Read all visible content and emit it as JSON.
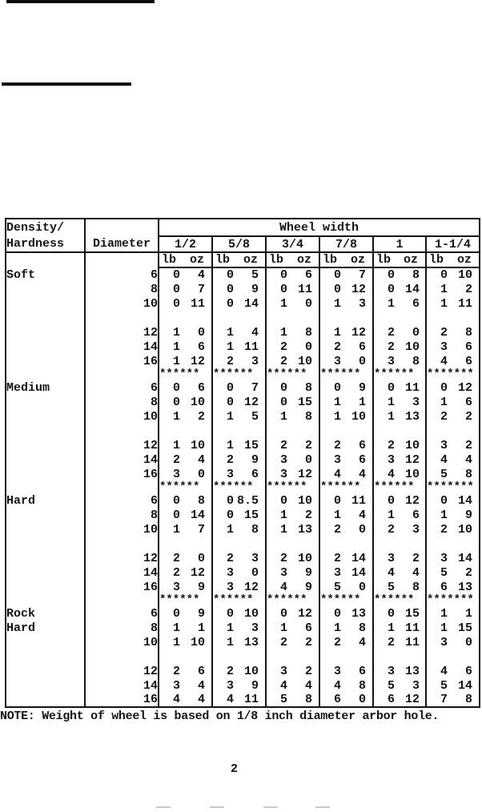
{
  "decor": {
    "top_rule_1": "redacted-rule",
    "top_rule_2": "redacted-rule"
  },
  "table": {
    "header": {
      "density_line1": "Density/",
      "density_line2": "Hardness",
      "diameter": "Diameter",
      "wheel_width": "Wheel width",
      "width_cols": [
        "1/2",
        "5/8",
        "3/4",
        "7/8",
        "1",
        "1-1/4"
      ],
      "units": {
        "lb": "lb",
        "oz": "oz"
      }
    },
    "sections": [
      {
        "label": [
          "Soft"
        ],
        "rows_a": [
          {
            "diameter": "6",
            "weights": [
              [
                "0",
                "4"
              ],
              [
                "0",
                "5"
              ],
              [
                "0",
                "6"
              ],
              [
                "0",
                "7"
              ],
              [
                "0",
                "8"
              ],
              [
                "0",
                "10"
              ]
            ]
          },
          {
            "diameter": "8",
            "weights": [
              [
                "0",
                "7"
              ],
              [
                "0",
                "9"
              ],
              [
                "0",
                "11"
              ],
              [
                "0",
                "12"
              ],
              [
                "0",
                "14"
              ],
              [
                "1",
                "2"
              ]
            ]
          },
          {
            "diameter": "10",
            "weights": [
              [
                "0",
                "11"
              ],
              [
                "0",
                "14"
              ],
              [
                "1",
                "0"
              ],
              [
                "1",
                "3"
              ],
              [
                "1",
                "6"
              ],
              [
                "1",
                "11"
              ]
            ]
          }
        ],
        "rows_b": [
          {
            "diameter": "12",
            "weights": [
              [
                "1",
                "0"
              ],
              [
                "1",
                "4"
              ],
              [
                "1",
                "8"
              ],
              [
                "1",
                "12"
              ],
              [
                "2",
                "0"
              ],
              [
                "2",
                "8"
              ]
            ]
          },
          {
            "diameter": "14",
            "weights": [
              [
                "1",
                "6"
              ],
              [
                "1",
                "11"
              ],
              [
                "2",
                "0"
              ],
              [
                "2",
                "6"
              ],
              [
                "2",
                "10"
              ],
              [
                "3",
                "6"
              ]
            ]
          },
          {
            "diameter": "16",
            "weights": [
              [
                "1",
                "12"
              ],
              [
                "2",
                "3"
              ],
              [
                "2",
                "10"
              ],
              [
                "3",
                "0"
              ],
              [
                "3",
                "8"
              ],
              [
                "4",
                "6"
              ]
            ]
          }
        ],
        "separator": [
          "******",
          "******",
          "******",
          "******",
          "******",
          "*******"
        ]
      },
      {
        "label": [
          "Medium"
        ],
        "rows_a": [
          {
            "diameter": "6",
            "weights": [
              [
                "0",
                "6"
              ],
              [
                "0",
                "7"
              ],
              [
                "0",
                "8"
              ],
              [
                "0",
                "9"
              ],
              [
                "0",
                "11"
              ],
              [
                "0",
                "12"
              ]
            ]
          },
          {
            "diameter": "8",
            "weights": [
              [
                "0",
                "10"
              ],
              [
                "0",
                "12"
              ],
              [
                "0",
                "15"
              ],
              [
                "1",
                "1"
              ],
              [
                "1",
                "3"
              ],
              [
                "1",
                "6"
              ]
            ]
          },
          {
            "diameter": "10",
            "weights": [
              [
                "1",
                "2"
              ],
              [
                "1",
                "5"
              ],
              [
                "1",
                "8"
              ],
              [
                "1",
                "10"
              ],
              [
                "1",
                "13"
              ],
              [
                "2",
                "2"
              ]
            ]
          }
        ],
        "rows_b": [
          {
            "diameter": "12",
            "weights": [
              [
                "1",
                "10"
              ],
              [
                "1",
                "15"
              ],
              [
                "2",
                "2"
              ],
              [
                "2",
                "6"
              ],
              [
                "2",
                "10"
              ],
              [
                "3",
                "2"
              ]
            ]
          },
          {
            "diameter": "14",
            "weights": [
              [
                "2",
                "4"
              ],
              [
                "2",
                "9"
              ],
              [
                "3",
                "0"
              ],
              [
                "3",
                "6"
              ],
              [
                "3",
                "12"
              ],
              [
                "4",
                "4"
              ]
            ]
          },
          {
            "diameter": "16",
            "weights": [
              [
                "3",
                "0"
              ],
              [
                "3",
                "6"
              ],
              [
                "3",
                "12"
              ],
              [
                "4",
                "4"
              ],
              [
                "4",
                "10"
              ],
              [
                "5",
                "8"
              ]
            ]
          }
        ],
        "separator": [
          "******",
          "******",
          "******",
          "******",
          "******",
          "*******"
        ]
      },
      {
        "label": [
          "Hard"
        ],
        "rows_a": [
          {
            "diameter": "6",
            "weights": [
              [
                "0",
                "8"
              ],
              [
                "0",
                "8.5"
              ],
              [
                "0",
                "10"
              ],
              [
                "0",
                "11"
              ],
              [
                "0",
                "12"
              ],
              [
                "0",
                "14"
              ]
            ]
          },
          {
            "diameter": "8",
            "weights": [
              [
                "0",
                "14"
              ],
              [
                "0",
                "15"
              ],
              [
                "1",
                "2"
              ],
              [
                "1",
                "4"
              ],
              [
                "1",
                "6"
              ],
              [
                "1",
                "9"
              ]
            ]
          },
          {
            "diameter": "10",
            "weights": [
              [
                "1",
                "7"
              ],
              [
                "1",
                "8"
              ],
              [
                "1",
                "13"
              ],
              [
                "2",
                "0"
              ],
              [
                "2",
                "3"
              ],
              [
                "2",
                "10"
              ]
            ]
          }
        ],
        "rows_b": [
          {
            "diameter": "12",
            "weights": [
              [
                "2",
                "0"
              ],
              [
                "2",
                "3"
              ],
              [
                "2",
                "10"
              ],
              [
                "2",
                "14"
              ],
              [
                "3",
                "2"
              ],
              [
                "3",
                "14"
              ]
            ]
          },
          {
            "diameter": "14",
            "weights": [
              [
                "2",
                "12"
              ],
              [
                "3",
                "0"
              ],
              [
                "3",
                "9"
              ],
              [
                "3",
                "14"
              ],
              [
                "4",
                "4"
              ],
              [
                "5",
                "2"
              ]
            ]
          },
          {
            "diameter": "16",
            "weights": [
              [
                "3",
                "9"
              ],
              [
                "3",
                "12"
              ],
              [
                "4",
                "9"
              ],
              [
                "5",
                "0"
              ],
              [
                "5",
                "8"
              ],
              [
                "6",
                "13"
              ]
            ]
          }
        ],
        "separator": [
          "******",
          "******",
          "******",
          "******",
          "******",
          "*******"
        ]
      },
      {
        "label": [
          "Rock",
          "Hard"
        ],
        "rows_a": [
          {
            "diameter": "6",
            "weights": [
              [
                "0",
                "9"
              ],
              [
                "0",
                "10"
              ],
              [
                "0",
                "12"
              ],
              [
                "0",
                "13"
              ],
              [
                "0",
                "15"
              ],
              [
                "1",
                "1"
              ]
            ]
          },
          {
            "diameter": "8",
            "weights": [
              [
                "1",
                "1"
              ],
              [
                "1",
                "3"
              ],
              [
                "1",
                "6"
              ],
              [
                "1",
                "8"
              ],
              [
                "1",
                "11"
              ],
              [
                "1",
                "15"
              ]
            ]
          },
          {
            "diameter": "10",
            "weights": [
              [
                "1",
                "10"
              ],
              [
                "1",
                "13"
              ],
              [
                "2",
                "2"
              ],
              [
                "2",
                "4"
              ],
              [
                "2",
                "11"
              ],
              [
                "3",
                "0"
              ]
            ]
          }
        ],
        "rows_b": [
          {
            "diameter": "12",
            "weights": [
              [
                "2",
                "6"
              ],
              [
                "2",
                "10"
              ],
              [
                "3",
                "2"
              ],
              [
                "3",
                "6"
              ],
              [
                "3",
                "13"
              ],
              [
                "4",
                "6"
              ]
            ]
          },
          {
            "diameter": "14",
            "weights": [
              [
                "3",
                "4"
              ],
              [
                "3",
                "9"
              ],
              [
                "4",
                "4"
              ],
              [
                "4",
                "8"
              ],
              [
                "5",
                "3"
              ],
              [
                "5",
                "14"
              ]
            ]
          },
          {
            "diameter": "16",
            "weights": [
              [
                "4",
                "4"
              ],
              [
                "4",
                "11"
              ],
              [
                "5",
                "8"
              ],
              [
                "6",
                "0"
              ],
              [
                "6",
                "12"
              ],
              [
                "7",
                "8"
              ]
            ]
          }
        ],
        "separator": null
      }
    ]
  },
  "note": "NOTE: Weight of wheel is based on 1/8 inch diameter arbor hole.",
  "page_number": "2"
}
